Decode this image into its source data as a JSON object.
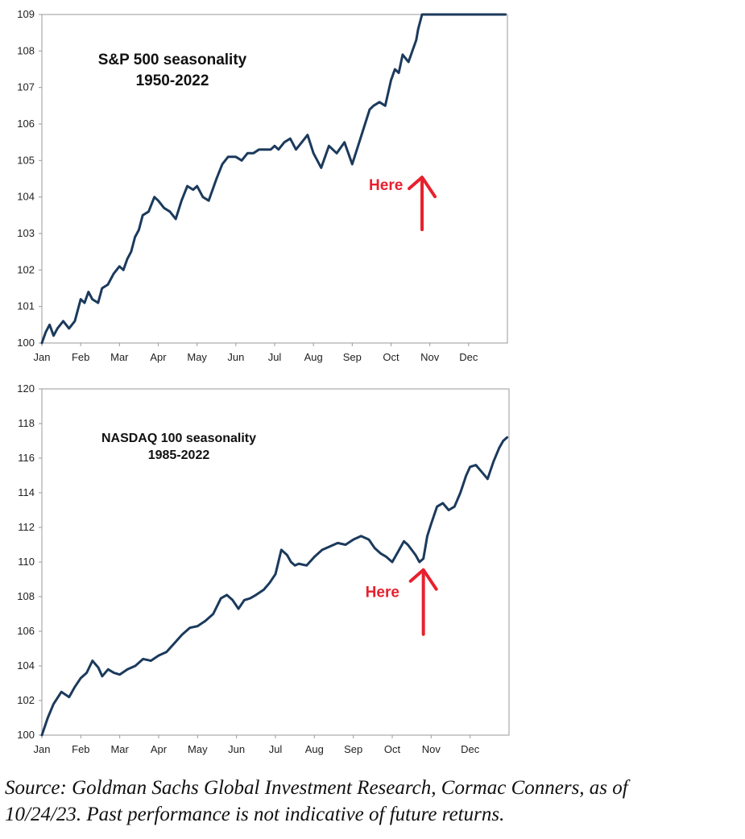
{
  "chart_data": [
    {
      "type": "line",
      "title": "S&P 500 seasonality",
      "subtitle": "1950-2022",
      "xlabel": "",
      "ylabel": "",
      "ylim": [
        100,
        109
      ],
      "yticks": [
        100,
        101,
        102,
        103,
        104,
        105,
        106,
        107,
        108,
        109
      ],
      "categories": [
        "Jan",
        "Feb",
        "Mar",
        "Apr",
        "May",
        "Jun",
        "Jul",
        "Aug",
        "Sep",
        "Oct",
        "Nov",
        "Dec"
      ],
      "grid": false,
      "legend": "none",
      "line_color": "#1b3a5c",
      "annotation": {
        "text": "Here",
        "x": 9.8,
        "y": 104.85,
        "color": "#e8202e"
      },
      "series": [
        {
          "x": [
            0,
            0.1,
            0.2,
            0.3,
            0.4,
            0.55,
            0.7,
            0.85,
            1.0,
            1.1,
            1.2,
            1.3,
            1.45,
            1.55,
            1.7,
            1.85,
            2.0,
            2.1,
            2.2,
            2.3,
            2.4,
            2.5,
            2.6,
            2.75,
            2.9,
            3.0,
            3.15,
            3.3,
            3.45,
            3.6,
            3.75,
            3.9,
            4.0,
            4.15,
            4.3,
            4.5,
            4.65,
            4.8,
            5.0,
            5.15,
            5.3,
            5.45,
            5.6,
            5.75,
            5.9,
            6.0,
            6.1,
            6.25,
            6.4,
            6.55,
            6.7,
            6.85,
            7.0,
            7.2,
            7.4,
            7.6,
            7.8,
            8.0,
            8.15,
            8.3,
            8.45,
            8.55,
            8.7,
            8.85,
            9.0,
            9.1,
            9.2,
            9.3,
            9.45,
            9.55,
            9.65,
            9.7,
            9.8,
            9.85,
            9.95,
            10.1,
            10.2,
            10.35,
            10.5,
            10.6,
            10.75,
            10.9,
            11.0,
            11.15,
            11.3,
            11.45,
            11.6,
            11.75,
            11.85,
            11.95
          ],
          "values": [
            100.0,
            100.3,
            100.5,
            100.2,
            100.4,
            100.6,
            100.4,
            100.6,
            101.2,
            101.1,
            101.4,
            101.2,
            101.1,
            101.5,
            101.6,
            101.9,
            102.1,
            102.0,
            102.3,
            102.5,
            102.9,
            103.1,
            103.5,
            103.6,
            104.0,
            103.9,
            103.7,
            103.6,
            103.4,
            103.9,
            104.3,
            104.2,
            104.3,
            104.0,
            103.9,
            104.5,
            104.9,
            105.1,
            105.1,
            105.0,
            105.2,
            105.2,
            105.3,
            105.3,
            105.3,
            105.4,
            105.3,
            105.5,
            105.6,
            105.3,
            105.5,
            105.7,
            105.2,
            104.8,
            105.4,
            105.2,
            105.5,
            104.9,
            105.4,
            105.9,
            106.4,
            106.5,
            106.6,
            106.5,
            107.2,
            107.5,
            107.4,
            107.9,
            107.7,
            108.0,
            108.3,
            108.6,
            109.0,
            109.0,
            109.0,
            109.0,
            109.0,
            109.0,
            109.0,
            109.0,
            109.0,
            109.0,
            109.0,
            109.0,
            109.0,
            109.0,
            109.0,
            109.0,
            109.0,
            109.0
          ]
        }
      ]
    },
    {
      "type": "line",
      "title": "NASDAQ 100 seasonality",
      "subtitle": "1985-2022",
      "xlabel": "",
      "ylabel": "",
      "ylim": [
        100,
        120
      ],
      "yticks": [
        100,
        102,
        104,
        106,
        108,
        110,
        112,
        114,
        116,
        118,
        120
      ],
      "categories": [
        "Jan",
        "Feb",
        "Mar",
        "Apr",
        "May",
        "Jun",
        "Jul",
        "Aug",
        "Sep",
        "Oct",
        "Nov",
        "Dec"
      ],
      "grid": false,
      "legend": "none",
      "line_color": "#1b3a5c",
      "annotation": {
        "text": "Here",
        "x": 9.8,
        "y": 110.2,
        "color": "#e8202e"
      },
      "series": [
        {
          "x": [
            0,
            0.15,
            0.3,
            0.5,
            0.7,
            0.85,
            1.0,
            1.15,
            1.3,
            1.45,
            1.55,
            1.7,
            1.85,
            2.0,
            2.2,
            2.4,
            2.6,
            2.8,
            3.0,
            3.2,
            3.4,
            3.6,
            3.8,
            4.0,
            4.2,
            4.4,
            4.6,
            4.75,
            4.9,
            5.05,
            5.2,
            5.35,
            5.5,
            5.7,
            5.85,
            6.0,
            6.15,
            6.3,
            6.4,
            6.5,
            6.6,
            6.8,
            7.0,
            7.2,
            7.4,
            7.6,
            7.8,
            8.0,
            8.2,
            8.4,
            8.55,
            8.7,
            8.85,
            9.0,
            9.15,
            9.3,
            9.4,
            9.5,
            9.6,
            9.7,
            9.8,
            9.9,
            10.0,
            10.15,
            10.3,
            10.45,
            10.6,
            10.75,
            10.9,
            11.0,
            11.15,
            11.3,
            11.45,
            11.6,
            11.75,
            11.85,
            11.95
          ],
          "values": [
            100.0,
            101.0,
            101.8,
            102.5,
            102.2,
            102.8,
            103.3,
            103.6,
            104.3,
            103.9,
            103.4,
            103.8,
            103.6,
            103.5,
            103.8,
            104.0,
            104.4,
            104.3,
            104.6,
            104.8,
            105.3,
            105.8,
            106.2,
            106.3,
            106.6,
            107.0,
            107.9,
            108.1,
            107.8,
            107.3,
            107.8,
            107.9,
            108.1,
            108.4,
            108.8,
            109.3,
            110.7,
            110.4,
            110.0,
            109.8,
            109.9,
            109.8,
            110.3,
            110.7,
            110.9,
            111.1,
            111.0,
            111.3,
            111.5,
            111.3,
            110.8,
            110.5,
            110.3,
            110.0,
            110.6,
            111.2,
            111.0,
            110.7,
            110.4,
            110.0,
            110.2,
            111.5,
            112.2,
            113.2,
            113.4,
            113.0,
            113.2,
            114.0,
            115.0,
            115.5,
            115.6,
            115.2,
            114.8,
            115.8,
            116.6,
            117.0,
            117.2
          ]
        }
      ]
    }
  ],
  "footer": {
    "line1": "Source: Goldman Sachs Global Investment Research, Cormac Conners,  as of",
    "line2": "10/24/23. Past performance is not indicative of future returns."
  }
}
